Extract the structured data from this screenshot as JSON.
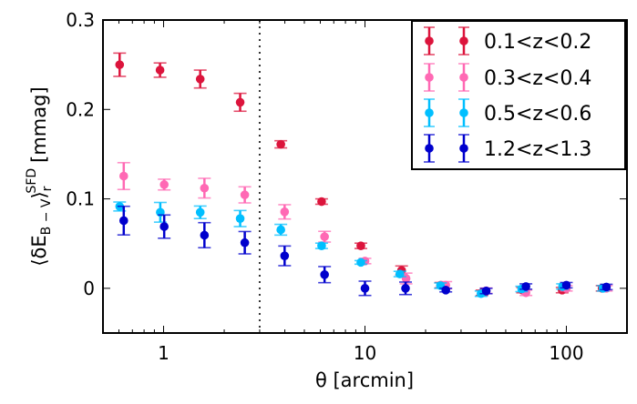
{
  "chart_data": {
    "type": "scatter",
    "title": "",
    "xlabel": "θ [arcmin]",
    "ylabel": {
      "open": "⟨δE",
      "sub1": "B − V",
      "close": "⟩",
      "sub2": "r",
      "sup": "SFD",
      "unit": "[mmag]"
    },
    "xscale": "log",
    "xlim": [
      0.5,
      200
    ],
    "ylim": [
      -0.05,
      0.3
    ],
    "xticks": [
      {
        "v": 1,
        "label": "1"
      },
      {
        "v": 10,
        "label": "10"
      },
      {
        "v": 100,
        "label": "100"
      }
    ],
    "yticks": [
      {
        "v": 0,
        "label": "0"
      },
      {
        "v": 0.1,
        "label": "0.1"
      },
      {
        "v": 0.2,
        "label": "0.2"
      },
      {
        "v": 0.3,
        "label": "0.3"
      }
    ],
    "vline": {
      "x": 3,
      "style": "dotted"
    },
    "grid": false,
    "legend_position": "top-right",
    "series": [
      {
        "name": "0.1<z<0.2",
        "color": "#dc143c",
        "x": [
          0.605,
          0.96,
          1.52,
          2.4,
          3.82,
          6.09,
          9.54,
          15.2,
          23.8,
          38.1,
          60.6,
          95.3,
          150.5
        ],
        "y": [
          0.25,
          0.244,
          0.234,
          0.208,
          0.161,
          0.097,
          0.0475,
          0.02,
          0.0035,
          -0.005,
          -0.002,
          -0.002,
          0.0
        ],
        "err": [
          0.013,
          0.008,
          0.01,
          0.01,
          0.004,
          0.003,
          0.003,
          0.005,
          0.003,
          0.003,
          0.003,
          0.003,
          0.003
        ]
      },
      {
        "name": "0.3<z<0.4",
        "color": "#ff69b4",
        "x": [
          0.634,
          1.007,
          1.595,
          2.53,
          3.99,
          6.3,
          10.0,
          16.0,
          25.2,
          40.0,
          63.0,
          100.0,
          158.0
        ],
        "y": [
          0.1255,
          0.116,
          0.112,
          0.1045,
          0.0855,
          0.0577,
          0.0305,
          0.011,
          0.0035,
          -0.0027,
          -0.005,
          0.0,
          0.0
        ],
        "err": [
          0.015,
          0.006,
          0.011,
          0.009,
          0.008,
          0.006,
          0.003,
          0.006,
          0.004,
          0.003,
          0.003,
          0.003,
          0.003
        ]
      },
      {
        "name": "0.5<z<0.6",
        "color": "#00bfff",
        "x": [
          0.605,
          0.963,
          1.52,
          2.4,
          3.82,
          6.09,
          9.54,
          14.9,
          23.7,
          37.7,
          60.0,
          95.7,
          152.0
        ],
        "y": [
          0.0915,
          0.085,
          0.085,
          0.078,
          0.0655,
          0.0475,
          0.029,
          0.016,
          0.003,
          -0.006,
          -0.0007,
          0.002,
          0.0
        ],
        "err": [
          0.005,
          0.011,
          0.007,
          0.009,
          0.006,
          0.003,
          0.002,
          0.003,
          0.003,
          0.003,
          0.003,
          0.003,
          0.003
        ]
      },
      {
        "name": "1.2<z<1.3",
        "color": "#0000cd",
        "x": [
          0.634,
          1.007,
          1.595,
          2.53,
          3.99,
          6.3,
          10.0,
          15.9,
          25.2,
          40.0,
          63.0,
          100.0,
          158.0
        ],
        "y": [
          0.0757,
          0.069,
          0.0594,
          0.051,
          0.0363,
          0.0153,
          0.0,
          0.0,
          -0.002,
          -0.003,
          0.002,
          0.0035,
          0.0015
        ],
        "err": [
          0.016,
          0.013,
          0.014,
          0.0125,
          0.011,
          0.009,
          0.008,
          0.007,
          0.002,
          0.003,
          0.003,
          0.003,
          0.003
        ]
      }
    ]
  }
}
